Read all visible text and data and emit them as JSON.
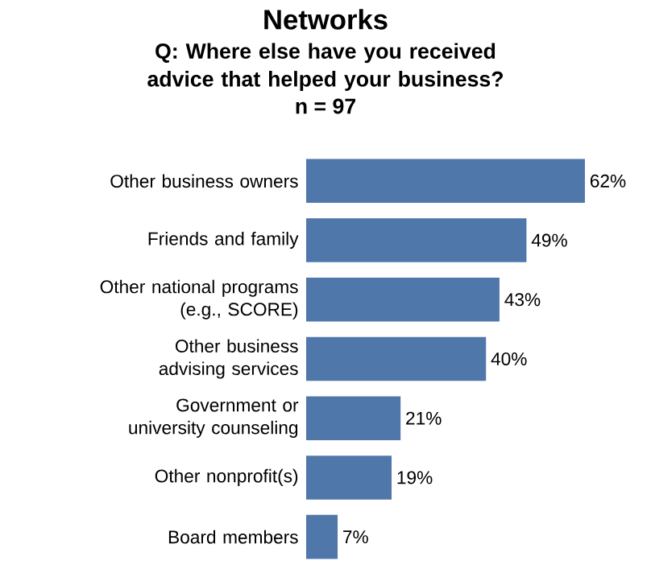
{
  "chart_data": {
    "type": "bar",
    "orientation": "horizontal",
    "title": "Networks",
    "subtitle": "Q: Where else have you received advice that helped your business?",
    "annotations": [
      "n =  97"
    ],
    "categories": [
      "Other business owners",
      "Friends and family",
      "Other national programs (e.g., SCORE)",
      "Other business advising services",
      "Government or university counseling",
      "Other nonprofit(s)",
      "Board members"
    ],
    "values": [
      62,
      49,
      43,
      40,
      21,
      19,
      7
    ],
    "value_labels": [
      "62%",
      "49%",
      "43%",
      "40%",
      "21%",
      "19%",
      "7%"
    ],
    "color": "#4f77aa"
  }
}
